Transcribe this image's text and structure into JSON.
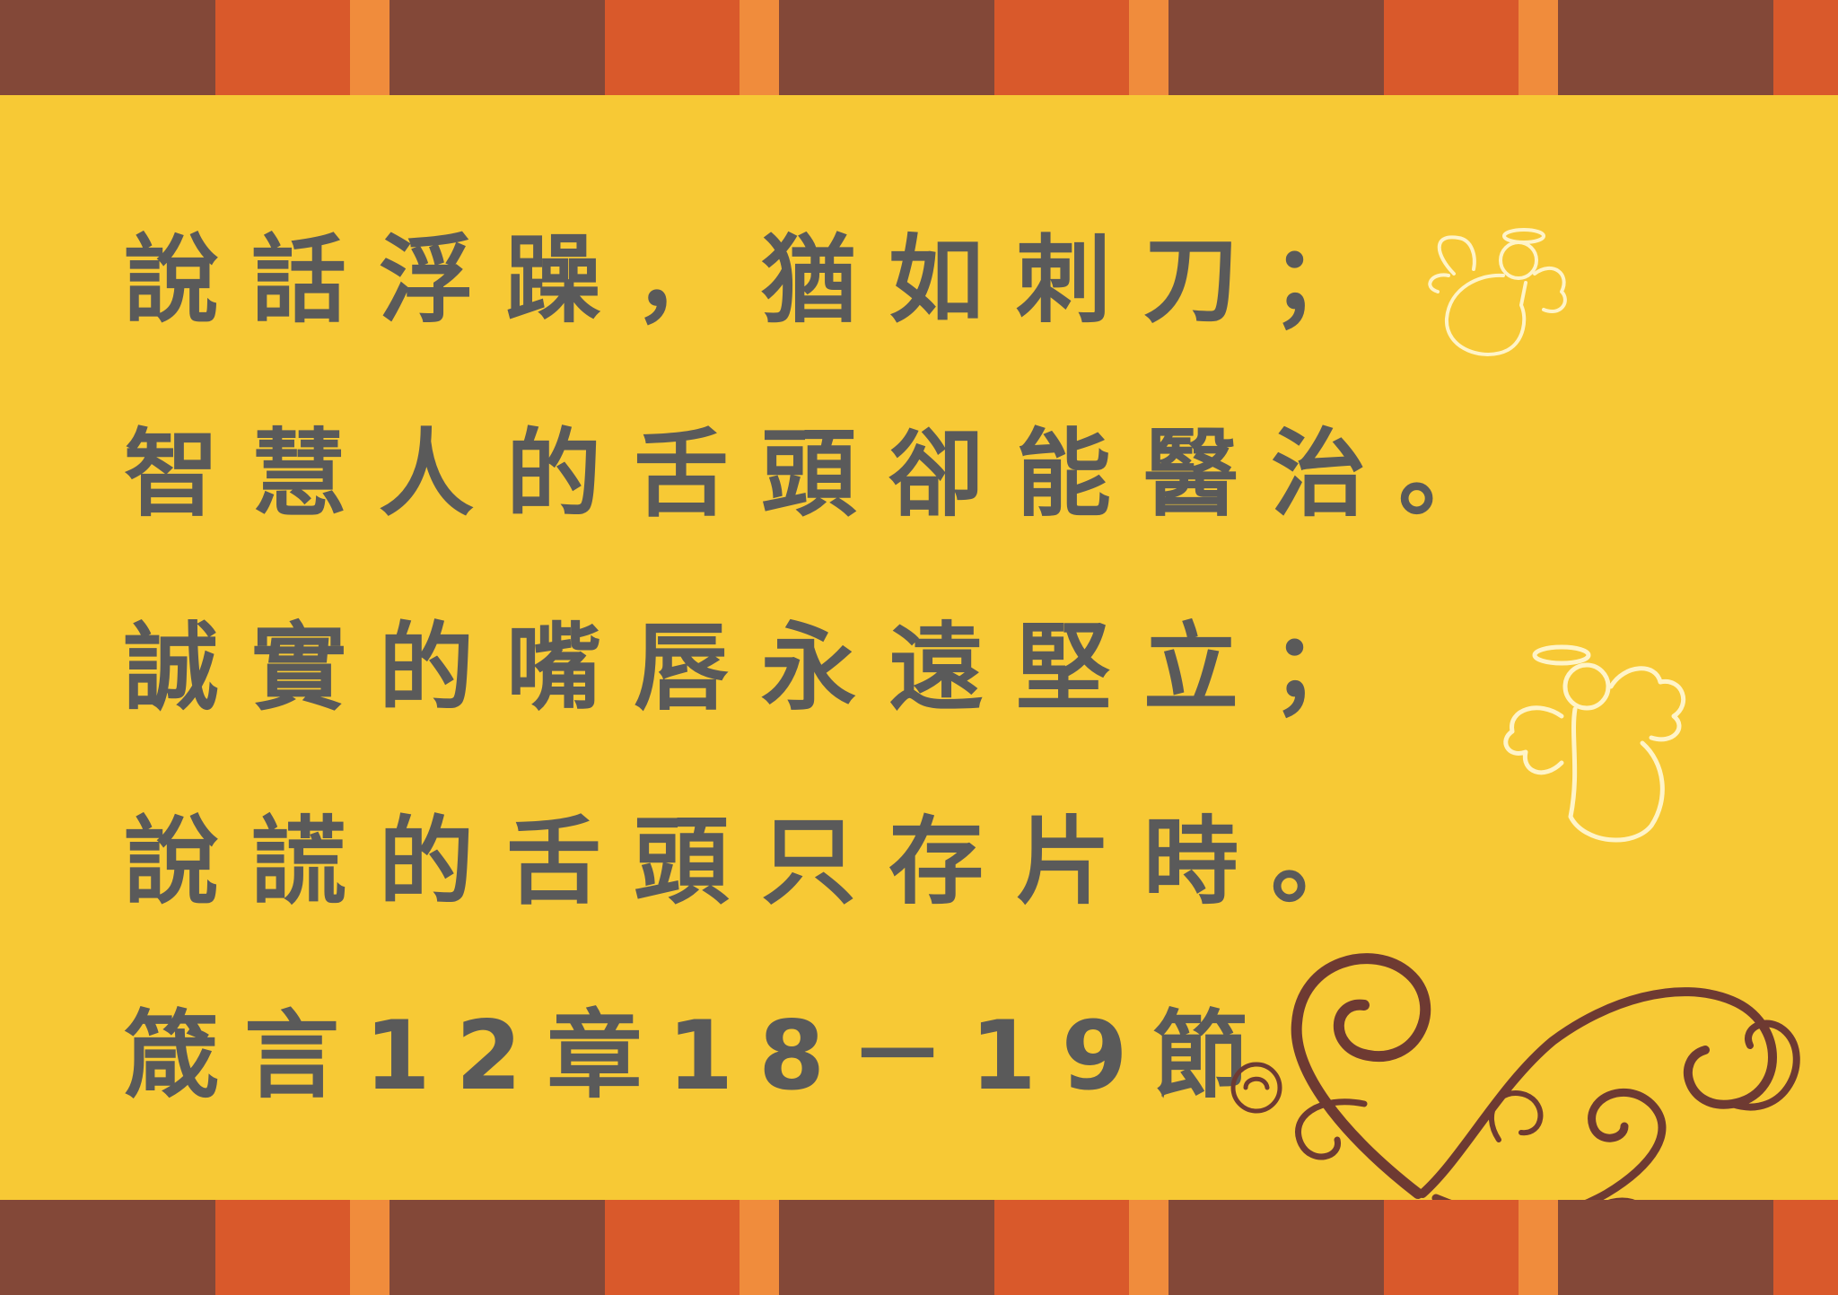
{
  "verse": {
    "line1": "說話浮躁，猶如刺刀；",
    "line2": "智慧人的舌頭卻能醫治。",
    "line3": "誠實的嘴唇永遠堅立；",
    "line4": "說謊的舌頭只存片時。",
    "reference": "箴言12章18－19節"
  },
  "colors": {
    "background": "#f7c935",
    "text": "#5a5a5a",
    "stripe_brown": "#834838",
    "stripe_orange": "#d9592b",
    "stripe_light_orange": "#f08c3c",
    "swirl": "#6e3a32",
    "chalk": "#fff4c8"
  },
  "decorations": {
    "angel_icon_top": "angel-icon",
    "angel_icon_bottom": "angel-icon",
    "swirl_ornament": "swirl-ornament-icon"
  }
}
